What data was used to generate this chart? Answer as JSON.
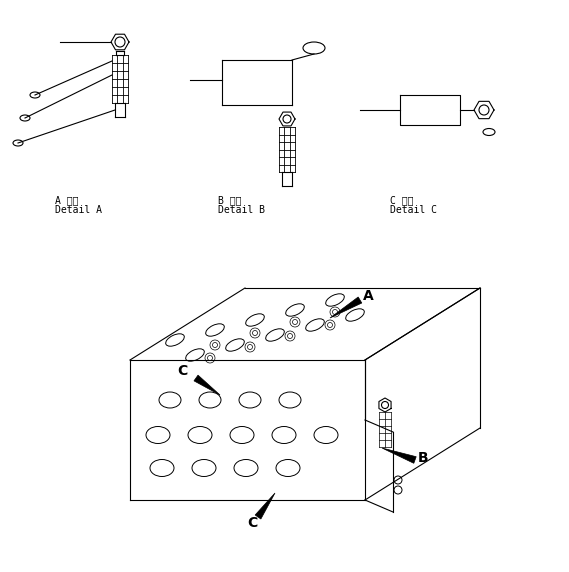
{
  "bg_color": "#ffffff",
  "label_A_line1": "A 詳細",
  "label_A_line2": "Detail A",
  "label_B_line1": "B 詳細",
  "label_B_line2": "Detail B",
  "label_C_line1": "C 詳細",
  "label_C_line2": "Detail C",
  "font_size_label": 7,
  "fig_width": 5.69,
  "fig_height": 5.72,
  "dpi": 100
}
